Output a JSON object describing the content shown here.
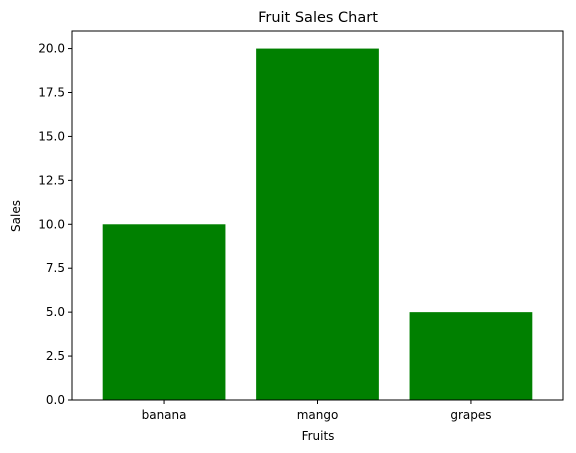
{
  "chart_data": {
    "type": "bar",
    "title": "Fruit Sales Chart",
    "xlabel": "Fruits",
    "ylabel": "Sales",
    "categories": [
      "banana",
      "mango",
      "grapes"
    ],
    "values": [
      10,
      20,
      5
    ],
    "ylim": [
      0,
      21
    ],
    "yticks": [
      "0.0",
      "2.5",
      "5.0",
      "7.5",
      "10.0",
      "12.5",
      "15.0",
      "17.5",
      "20.0"
    ],
    "grid": false,
    "bar_color": "#008000"
  }
}
